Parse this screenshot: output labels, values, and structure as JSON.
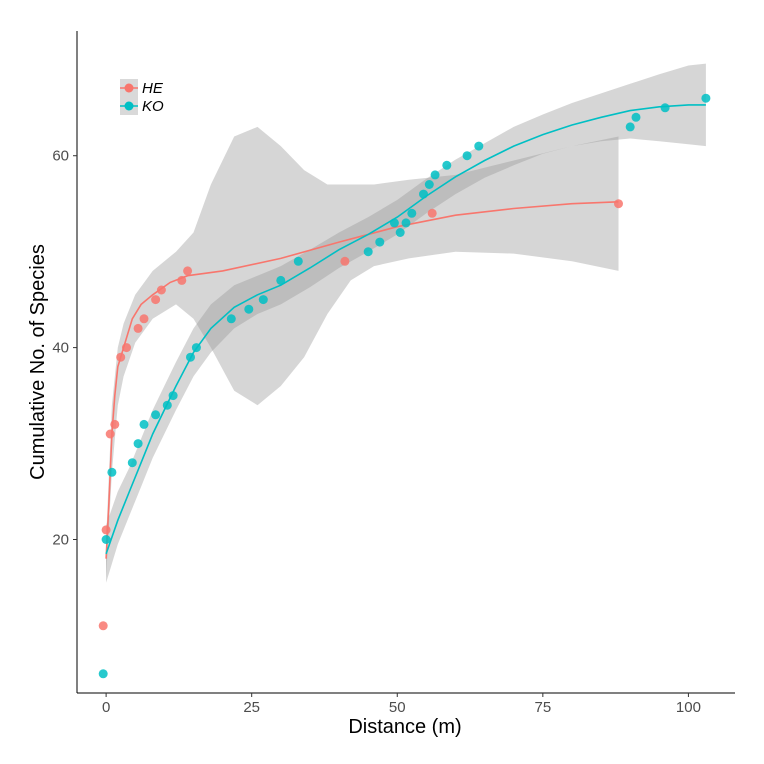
{
  "chart_data": {
    "type": "scatter",
    "title": "",
    "xlabel": "Distance (m)",
    "ylabel": "Cumulative No. of Species",
    "xlim": [
      -5,
      108
    ],
    "ylim": [
      4,
      73
    ],
    "xticks": [
      0,
      25,
      50,
      75,
      100
    ],
    "yticks": [
      20,
      40,
      60
    ],
    "xtick_labels": [
      "0",
      "25",
      "50",
      "75",
      "100"
    ],
    "ytick_labels": [
      "20",
      "40",
      "60"
    ],
    "grid": false,
    "legend_position": "top-left",
    "band_color": "#999999",
    "series": [
      {
        "name": "HE",
        "color": "#f8766d",
        "points": [
          {
            "x": -0.5,
            "y": 11
          },
          {
            "x": 0,
            "y": 21
          },
          {
            "x": 0.7,
            "y": 31
          },
          {
            "x": 1.5,
            "y": 32
          },
          {
            "x": 2.5,
            "y": 39
          },
          {
            "x": 3.5,
            "y": 40
          },
          {
            "x": 5.5,
            "y": 42
          },
          {
            "x": 6.5,
            "y": 43
          },
          {
            "x": 8.5,
            "y": 45
          },
          {
            "x": 9.5,
            "y": 46
          },
          {
            "x": 13,
            "y": 47
          },
          {
            "x": 14,
            "y": 48
          },
          {
            "x": 41,
            "y": 49
          },
          {
            "x": 56,
            "y": 54
          },
          {
            "x": 88,
            "y": 55
          }
        ],
        "fit": [
          {
            "x": 0,
            "y": 18
          },
          {
            "x": 0.5,
            "y": 24
          },
          {
            "x": 1,
            "y": 31
          },
          {
            "x": 1.5,
            "y": 35
          },
          {
            "x": 2,
            "y": 38
          },
          {
            "x": 3,
            "y": 40
          },
          {
            "x": 4.5,
            "y": 43
          },
          {
            "x": 6,
            "y": 44.5
          },
          {
            "x": 8,
            "y": 45.5
          },
          {
            "x": 11,
            "y": 46.8
          },
          {
            "x": 14,
            "y": 47.5
          },
          {
            "x": 20,
            "y": 48
          },
          {
            "x": 30,
            "y": 49.3
          },
          {
            "x": 40,
            "y": 51
          },
          {
            "x": 50,
            "y": 52.6
          },
          {
            "x": 60,
            "y": 53.8
          },
          {
            "x": 70,
            "y": 54.5
          },
          {
            "x": 80,
            "y": 55
          },
          {
            "x": 88,
            "y": 55.2
          }
        ],
        "band": [
          {
            "x": 0,
            "lo": 16,
            "hi": 20
          },
          {
            "x": 1,
            "lo": 27,
            "hi": 34
          },
          {
            "x": 2,
            "lo": 34,
            "hi": 40
          },
          {
            "x": 3,
            "lo": 37,
            "hi": 42.5
          },
          {
            "x": 5,
            "lo": 40.5,
            "hi": 45.5
          },
          {
            "x": 8,
            "lo": 43,
            "hi": 48
          },
          {
            "x": 12,
            "lo": 44.5,
            "hi": 50
          },
          {
            "x": 15,
            "lo": 43,
            "hi": 52
          },
          {
            "x": 18,
            "lo": 40,
            "hi": 57
          },
          {
            "x": 22,
            "lo": 35.5,
            "hi": 62
          },
          {
            "x": 26,
            "lo": 34,
            "hi": 63
          },
          {
            "x": 30,
            "lo": 36,
            "hi": 61
          },
          {
            "x": 34,
            "lo": 39,
            "hi": 58.5
          },
          {
            "x": 38,
            "lo": 43.5,
            "hi": 57
          },
          {
            "x": 42,
            "lo": 47,
            "hi": 57
          },
          {
            "x": 46,
            "lo": 48.5,
            "hi": 57
          },
          {
            "x": 52,
            "lo": 49.3,
            "hi": 57.5
          },
          {
            "x": 60,
            "lo": 50,
            "hi": 58
          },
          {
            "x": 70,
            "lo": 49.8,
            "hi": 59.5
          },
          {
            "x": 80,
            "lo": 49,
            "hi": 61
          },
          {
            "x": 88,
            "lo": 48,
            "hi": 62
          }
        ]
      },
      {
        "name": "KO",
        "color": "#00bfc4",
        "points": [
          {
            "x": -0.5,
            "y": 6
          },
          {
            "x": 0,
            "y": 20
          },
          {
            "x": 1,
            "y": 27
          },
          {
            "x": 4.5,
            "y": 28
          },
          {
            "x": 5.5,
            "y": 30
          },
          {
            "x": 6.5,
            "y": 32
          },
          {
            "x": 8.5,
            "y": 33
          },
          {
            "x": 10.5,
            "y": 34
          },
          {
            "x": 11.5,
            "y": 35
          },
          {
            "x": 14.5,
            "y": 39
          },
          {
            "x": 15.5,
            "y": 40
          },
          {
            "x": 21.5,
            "y": 43
          },
          {
            "x": 24.5,
            "y": 44
          },
          {
            "x": 27,
            "y": 45
          },
          {
            "x": 30,
            "y": 47
          },
          {
            "x": 33,
            "y": 49
          },
          {
            "x": 45,
            "y": 50
          },
          {
            "x": 47,
            "y": 51
          },
          {
            "x": 49.5,
            "y": 53
          },
          {
            "x": 50.5,
            "y": 52
          },
          {
            "x": 51.5,
            "y": 53
          },
          {
            "x": 52.5,
            "y": 54
          },
          {
            "x": 54.5,
            "y": 56
          },
          {
            "x": 55.5,
            "y": 57
          },
          {
            "x": 56.5,
            "y": 58
          },
          {
            "x": 58.5,
            "y": 59
          },
          {
            "x": 62,
            "y": 60
          },
          {
            "x": 64,
            "y": 61
          },
          {
            "x": 90,
            "y": 63
          },
          {
            "x": 91,
            "y": 64
          },
          {
            "x": 96,
            "y": 65
          },
          {
            "x": 103,
            "y": 66
          }
        ],
        "fit": [
          {
            "x": 0,
            "y": 18.5
          },
          {
            "x": 2,
            "y": 22
          },
          {
            "x": 4,
            "y": 25
          },
          {
            "x": 6,
            "y": 28
          },
          {
            "x": 8,
            "y": 31
          },
          {
            "x": 10,
            "y": 33.5
          },
          {
            "x": 12,
            "y": 36
          },
          {
            "x": 15,
            "y": 39.5
          },
          {
            "x": 18,
            "y": 42
          },
          {
            "x": 22,
            "y": 44.2
          },
          {
            "x": 26,
            "y": 45.5
          },
          {
            "x": 30,
            "y": 46.5
          },
          {
            "x": 35,
            "y": 48.3
          },
          {
            "x": 40,
            "y": 50.2
          },
          {
            "x": 45,
            "y": 51.8
          },
          {
            "x": 50,
            "y": 53.6
          },
          {
            "x": 55,
            "y": 55.8
          },
          {
            "x": 60,
            "y": 57.8
          },
          {
            "x": 65,
            "y": 59.5
          },
          {
            "x": 70,
            "y": 61
          },
          {
            "x": 75,
            "y": 62.2
          },
          {
            "x": 80,
            "y": 63.2
          },
          {
            "x": 85,
            "y": 64
          },
          {
            "x": 90,
            "y": 64.7
          },
          {
            "x": 95,
            "y": 65.1
          },
          {
            "x": 100,
            "y": 65.3
          },
          {
            "x": 103,
            "y": 65.3
          }
        ],
        "band": [
          {
            "x": 0,
            "lo": 15.5,
            "hi": 21.5
          },
          {
            "x": 2,
            "lo": 19.5,
            "hi": 25
          },
          {
            "x": 4,
            "lo": 22.5,
            "hi": 27.5
          },
          {
            "x": 6,
            "lo": 25.5,
            "hi": 30.5
          },
          {
            "x": 8,
            "lo": 28.5,
            "hi": 33.5
          },
          {
            "x": 10,
            "lo": 31,
            "hi": 36
          },
          {
            "x": 12,
            "lo": 33.5,
            "hi": 38.5
          },
          {
            "x": 15,
            "lo": 37,
            "hi": 42
          },
          {
            "x": 18,
            "lo": 39.5,
            "hi": 44.5
          },
          {
            "x": 22,
            "lo": 42,
            "hi": 46.5
          },
          {
            "x": 26,
            "lo": 43.5,
            "hi": 47.5
          },
          {
            "x": 30,
            "lo": 44.5,
            "hi": 48.5
          },
          {
            "x": 35,
            "lo": 46.3,
            "hi": 50.2
          },
          {
            "x": 40,
            "lo": 48.3,
            "hi": 52
          },
          {
            "x": 45,
            "lo": 50,
            "hi": 53.6
          },
          {
            "x": 50,
            "lo": 51.8,
            "hi": 55.4
          },
          {
            "x": 55,
            "lo": 54,
            "hi": 57.6
          },
          {
            "x": 60,
            "lo": 56,
            "hi": 59.6
          },
          {
            "x": 65,
            "lo": 57.7,
            "hi": 61.3
          },
          {
            "x": 70,
            "lo": 59,
            "hi": 63
          },
          {
            "x": 75,
            "lo": 60.2,
            "hi": 64.3
          },
          {
            "x": 80,
            "lo": 61,
            "hi": 65.5
          },
          {
            "x": 85,
            "lo": 61.5,
            "hi": 66.5
          },
          {
            "x": 90,
            "lo": 61.8,
            "hi": 67.5
          },
          {
            "x": 95,
            "lo": 61.5,
            "hi": 68.5
          },
          {
            "x": 100,
            "lo": 61.2,
            "hi": 69.4
          },
          {
            "x": 103,
            "lo": 61,
            "hi": 69.6
          }
        ]
      }
    ]
  }
}
